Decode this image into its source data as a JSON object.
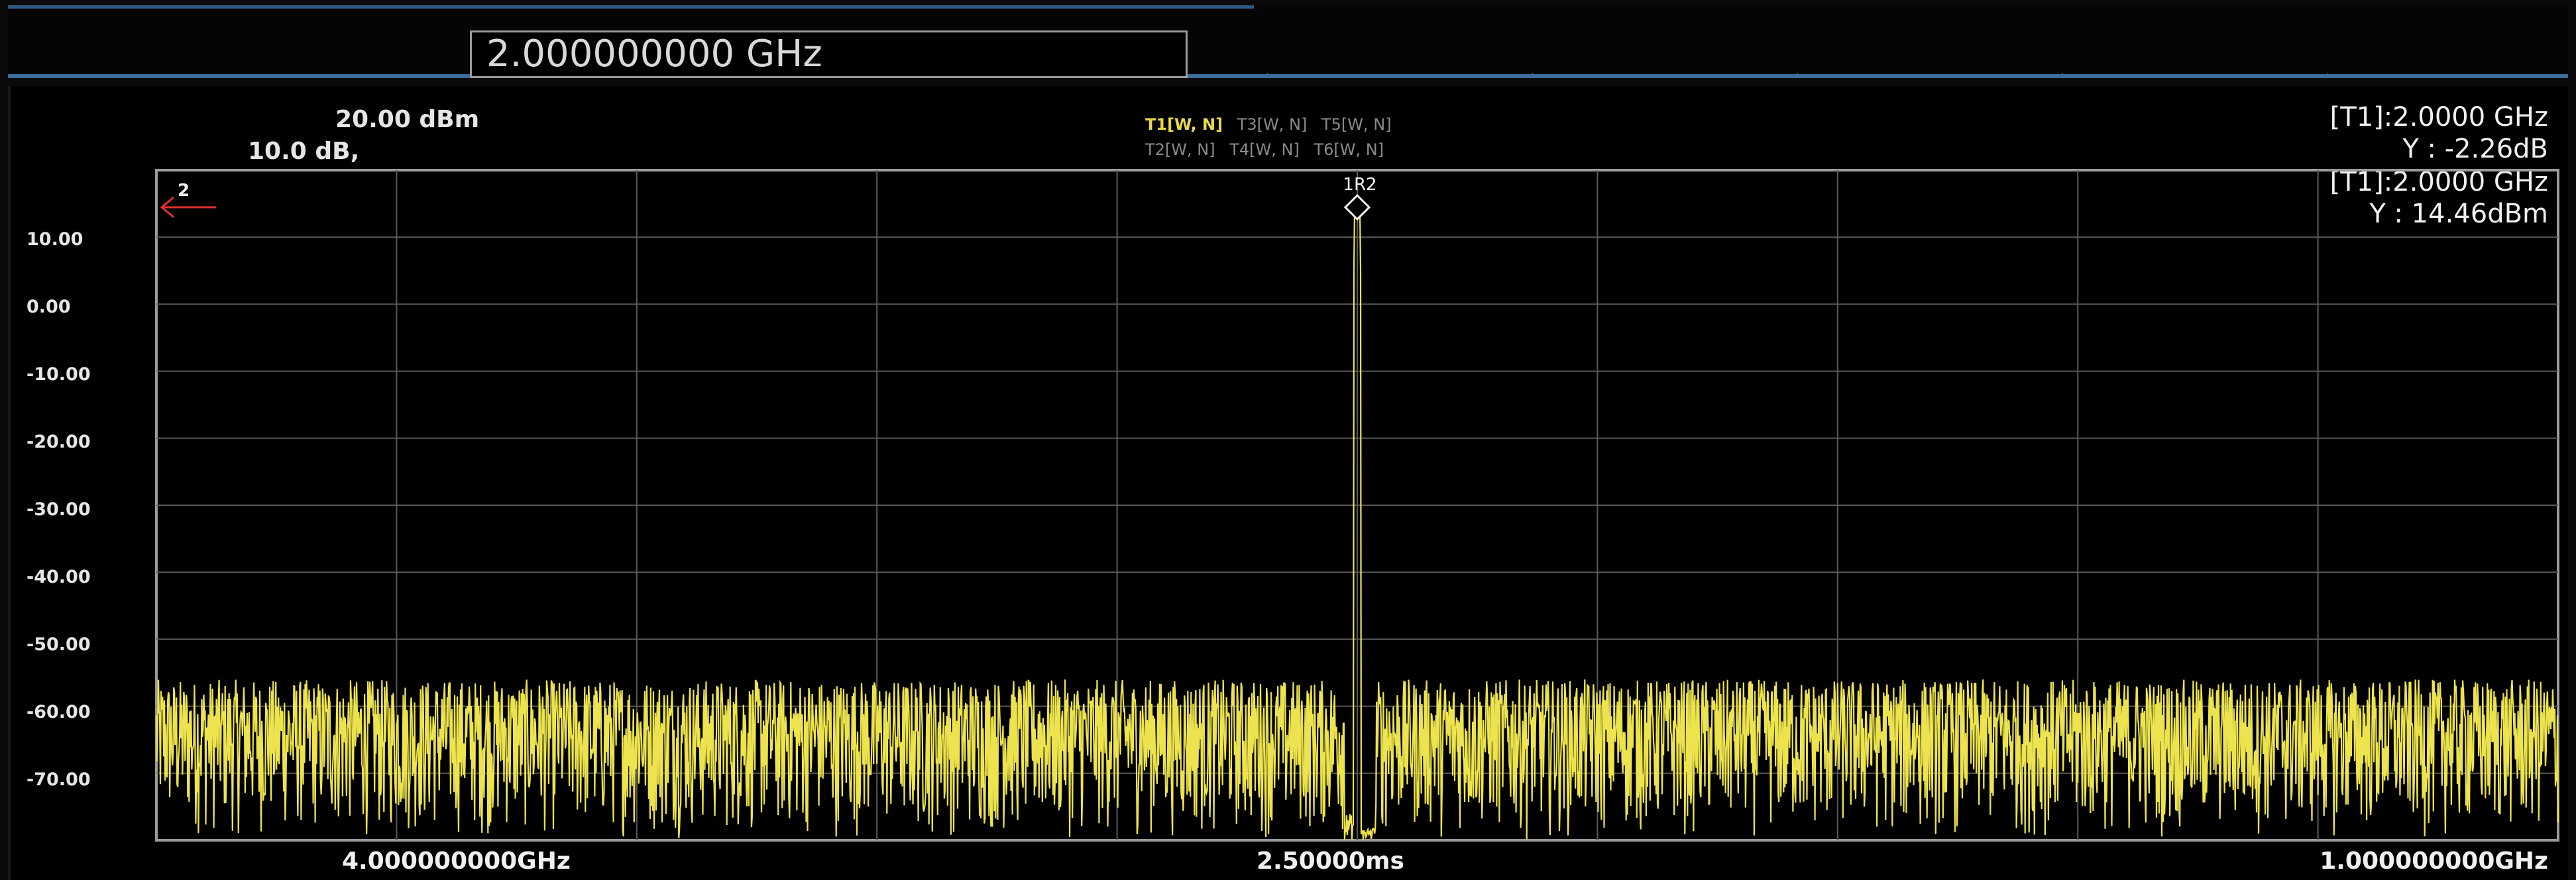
{
  "entry": {
    "value": "2.000000000 GHz"
  },
  "header": {
    "ref_level": "20.00 dBm",
    "scale_div": "10.0 dB,"
  },
  "traces": {
    "row1": [
      "T1[W, N]",
      "T3[W, N]",
      "T5[W, N]"
    ],
    "row2": [
      "T2[W, N]",
      "T4[W, N]",
      "T6[W, N]"
    ],
    "active": "T1[W, N]",
    "active_color": "#e8d94a"
  },
  "markers": {
    "readout1_x": "[T1]:2.0000 GHz",
    "readout1_y": "Y : -2.26dB",
    "readout2_x": "[T1]:2.0000 GHz",
    "readout2_y": "Y : 14.46dBm",
    "peak_label": "1R2",
    "ref_marker_label": "2"
  },
  "axis": {
    "start_label": "4.000000000GHz",
    "center_label": "2.50000ms",
    "stop_label": "1.000000000GHz"
  },
  "colors": {
    "trace": "#ece34e",
    "grid": "#5a5a5a",
    "frame": "#9a9a9a",
    "ref_arrow": "#e03030"
  },
  "chart_data": {
    "type": "line",
    "y_ticks": [
      "10.00",
      "0.00",
      "-10.00",
      "-20.00",
      "-30.00",
      "-40.00",
      "-50.00",
      "-60.00",
      "-70.00"
    ],
    "ylim": [
      -80,
      20
    ],
    "grid": true,
    "x_divisions": 10,
    "y_divisions": 10,
    "noise_floor": {
      "mean": -70,
      "low": -80,
      "high": -56
    },
    "peak": {
      "x_fraction": 0.5,
      "y": 14.46
    }
  }
}
